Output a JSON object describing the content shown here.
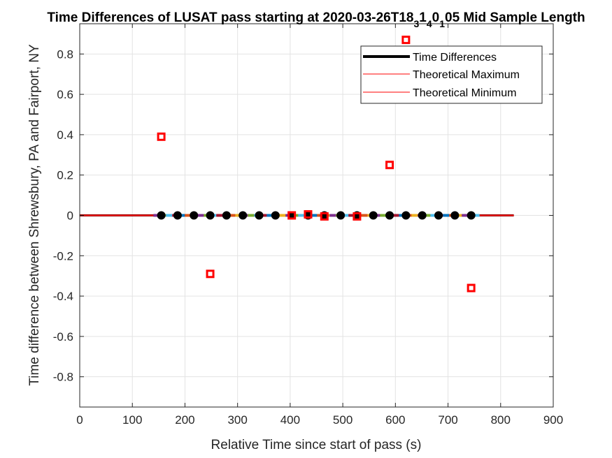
{
  "chart_data": {
    "type": "scatter",
    "title": "Time Differences of LUSAT pass starting at 2020-03-26T18_3 1_4 0_1 05 Mid Sample Length",
    "title_parts": [
      {
        "text": "Time Differences of LUSAT pass starting at 2020-03-26T18",
        "sub": false
      },
      {
        "text": "3",
        "sub": true
      },
      {
        "text": "1",
        "sub": false
      },
      {
        "text": "4",
        "sub": true
      },
      {
        "text": "0",
        "sub": false
      },
      {
        "text": "1",
        "sub": true
      },
      {
        "text": "05 Mid Sample Length",
        "sub": false
      }
    ],
    "xlabel": "Relative Time since start of pass (s)",
    "ylabel": "Time difference between Shrewsbury, PA and Fairport, NY",
    "xlim": [
      0,
      900
    ],
    "ylim": [
      -0.95,
      0.95
    ],
    "xticks": [
      0,
      100,
      200,
      300,
      400,
      500,
      600,
      700,
      800,
      900
    ],
    "yticks": [
      -0.8,
      -0.6,
      -0.4,
      -0.2,
      0,
      0.2,
      0.4,
      0.6,
      0.8
    ],
    "grid": true,
    "legend_position": "top-right",
    "legend": [
      {
        "label": "Time Differences",
        "color": "#000000",
        "style": "thick"
      },
      {
        "label": "Theoretical Maximum",
        "color": "#ff0000",
        "style": "thin"
      },
      {
        "label": "Theoretical Minimum",
        "color": "#ff0000",
        "style": "thin"
      }
    ],
    "series": [
      {
        "name": "Time Differences",
        "color": "#000000",
        "x": [
          0,
          825
        ],
        "y": [
          0,
          0
        ]
      },
      {
        "name": "Theoretical Maximum",
        "color": "#ff0000",
        "x": [
          0,
          825
        ],
        "y": [
          0.002,
          0.002
        ]
      },
      {
        "name": "Theoretical Minimum",
        "color": "#ff0000",
        "x": [
          0,
          825
        ],
        "y": [
          -0.002,
          -0.002
        ]
      }
    ],
    "band": {
      "x": [
        140,
        760
      ],
      "y": 0,
      "colors": [
        "#7e2f8e",
        "#77ac30",
        "#4dbeee",
        "#a2142f",
        "#0072bd",
        "#d95319",
        "#edb120"
      ]
    },
    "black_points": {
      "color": "#000000",
      "x": [
        155,
        186,
        217,
        248,
        279,
        310,
        341,
        372,
        403,
        434,
        465,
        496,
        527,
        558,
        589,
        620,
        651,
        682,
        713,
        744
      ],
      "y": [
        0,
        0,
        0,
        0,
        0,
        0,
        0,
        0,
        0,
        0,
        0,
        0,
        0,
        0,
        0,
        0,
        0,
        0,
        0,
        0
      ]
    },
    "red_squares": {
      "color": "#ff0000",
      "x": [
        155,
        248,
        403,
        434,
        465,
        527,
        589,
        620,
        744
      ],
      "y": [
        0.39,
        -0.29,
        0.0,
        0.005,
        -0.005,
        -0.005,
        0.25,
        0.87,
        -0.36
      ]
    }
  }
}
